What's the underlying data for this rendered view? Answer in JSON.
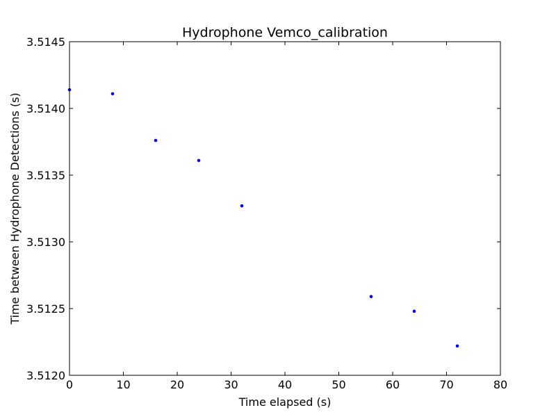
{
  "chart_data": {
    "type": "scatter",
    "title": "Hydrophone Vemco_calibration",
    "xlabel": "Time elapsed (s)",
    "ylabel": "Time between Hydrophone Detections (s)",
    "xlim": [
      0,
      80
    ],
    "ylim": [
      3.512,
      3.5145
    ],
    "xticks": [
      0,
      10,
      20,
      30,
      40,
      50,
      60,
      70,
      80
    ],
    "xtick_labels": [
      "0",
      "10",
      "20",
      "30",
      "40",
      "50",
      "60",
      "70",
      "80"
    ],
    "yticks": [
      3.512,
      3.5125,
      3.513,
      3.5135,
      3.514,
      3.5145
    ],
    "ytick_labels": [
      "3.5120",
      "3.5125",
      "3.5130",
      "3.5135",
      "3.5140",
      "3.5145"
    ],
    "grid": false,
    "marker_color": "#0000ff",
    "x": [
      0,
      8,
      16,
      24,
      32,
      56,
      64,
      72
    ],
    "y": [
      3.51414,
      3.51411,
      3.51376,
      3.51361,
      3.51327,
      3.51259,
      3.51248,
      3.51222
    ]
  }
}
